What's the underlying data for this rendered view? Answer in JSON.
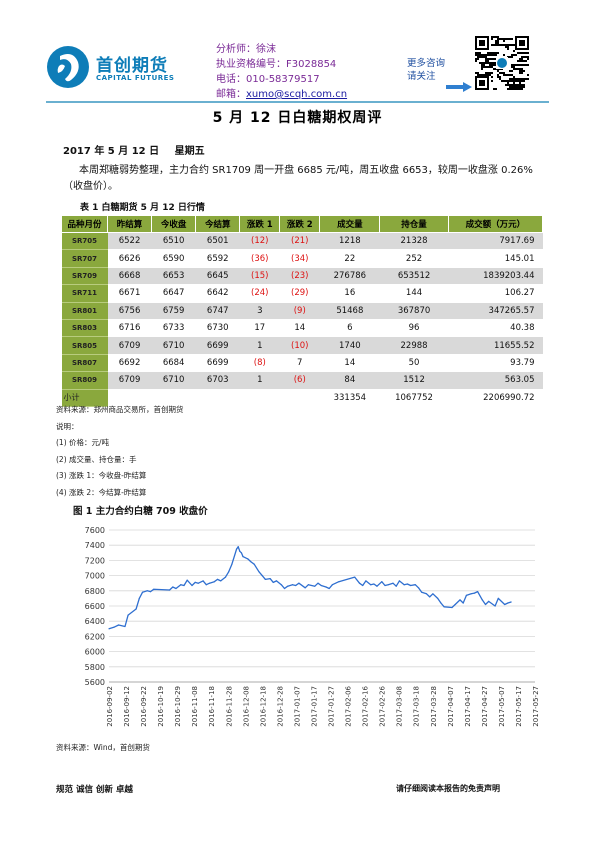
{
  "header": {
    "logo_cn": "首创期货",
    "logo_en": "CAPITAL FUTURES",
    "analyst_label": "分析师：",
    "analyst_name": "徐沫",
    "license_label": "执业资格编号：",
    "license_no": "F3028854",
    "phone_label": "电话：",
    "phone": "010-58379517",
    "email_label": "邮箱：",
    "email": "xumo@scqh.com.cn",
    "follow_line1": "更多咨询",
    "follow_line2": "请关注",
    "accent_color": "#0e7db8"
  },
  "title": "5 月 12 日白糖期权周评",
  "date": {
    "date": "2017 年 5 月 12 日",
    "weekday": "星期五"
  },
  "summary": "本周郑糖弱势整理，主力合约 SR1709 周一开盘 6685 元/吨，周五收盘 6653，较周一收盘涨 0.26%（收盘价）。",
  "table": {
    "caption": "表 1  白糖期货 5 月 12 日行情",
    "headers": [
      "品种月份",
      "昨结算",
      "今收盘",
      "今结算",
      "涨跌 1",
      "涨跌 2",
      "成交量",
      "持仓量",
      "成交额（万元）"
    ],
    "rows": [
      {
        "code": "SR705",
        "prev_settle": "6522",
        "close": "6510",
        "settle": "6501",
        "chg1": "(12)",
        "chg2": "(21)",
        "volume": "1218",
        "oi": "21328",
        "turnover": "7917.69"
      },
      {
        "code": "SR707",
        "prev_settle": "6626",
        "close": "6590",
        "settle": "6592",
        "chg1": "(36)",
        "chg2": "(34)",
        "volume": "22",
        "oi": "252",
        "turnover": "145.01"
      },
      {
        "code": "SR709",
        "prev_settle": "6668",
        "close": "6653",
        "settle": "6645",
        "chg1": "(15)",
        "chg2": "(23)",
        "volume": "276786",
        "oi": "653512",
        "turnover": "1839203.44"
      },
      {
        "code": "SR711",
        "prev_settle": "6671",
        "close": "6647",
        "settle": "6642",
        "chg1": "(24)",
        "chg2": "(29)",
        "volume": "16",
        "oi": "144",
        "turnover": "106.27"
      },
      {
        "code": "SR801",
        "prev_settle": "6756",
        "close": "6759",
        "settle": "6747",
        "chg1": "3",
        "chg2": "(9)",
        "volume": "51468",
        "oi": "367870",
        "turnover": "347265.57"
      },
      {
        "code": "SR803",
        "prev_settle": "6716",
        "close": "6733",
        "settle": "6730",
        "chg1": "17",
        "chg2": "14",
        "volume": "6",
        "oi": "96",
        "turnover": "40.38"
      },
      {
        "code": "SR805",
        "prev_settle": "6709",
        "close": "6710",
        "settle": "6699",
        "chg1": "1",
        "chg2": "(10)",
        "volume": "1740",
        "oi": "22988",
        "turnover": "11655.52"
      },
      {
        "code": "SR807",
        "prev_settle": "6692",
        "close": "6684",
        "settle": "6699",
        "chg1": "(8)",
        "chg2": "7",
        "volume": "14",
        "oi": "50",
        "turnover": "93.79"
      },
      {
        "code": "SR809",
        "prev_settle": "6709",
        "close": "6710",
        "settle": "6703",
        "chg1": "1",
        "chg2": "(6)",
        "volume": "84",
        "oi": "1512",
        "turnover": "563.05"
      }
    ],
    "total": {
      "label": "小计",
      "volume": "331354",
      "oi": "1067752",
      "turnover": "2206990.72"
    },
    "header_color": "#8aa83d",
    "negative_color": "#d11111"
  },
  "notes": {
    "source": "资料来源：郑州商品交易所，首创期货",
    "heading": "说明：",
    "items": [
      "(1)  价格：元/吨",
      "(2)  成交量、持仓量：手",
      "(3)  涨跌 1：今收盘-昨结算",
      "(4)  涨跌 2：今结算-昨结算"
    ]
  },
  "chart_data": {
    "type": "line",
    "title": "图 1  主力合约白糖 709 收盘价",
    "ylim": [
      5600,
      7600
    ],
    "yticks": [
      "7600",
      "7400",
      "7200",
      "7000",
      "6800",
      "6600",
      "6400",
      "6200",
      "6000",
      "5800",
      "5600"
    ],
    "grid": true,
    "line_color": "#2f6fd0",
    "xticks": [
      "2016-09-02",
      "2016-09-12",
      "2016-09-22",
      "2016-10-02",
      "2016-10-12",
      "2016-10-22",
      "2016-11-01",
      "2016-11-11",
      "2016-11-21",
      "2016-12-01",
      "2016-12-11",
      "2016-12-21",
      "2016-12-31",
      "2017-01-10",
      "2017-01-20",
      "2017-01-30",
      "2017-02-09",
      "2017-02-19",
      "2017-03-01",
      "2017-03-11",
      "2017-03-21",
      "2017-03-31",
      "2017-04-10",
      "2017-04-20",
      "2017-04-30",
      "2017-05-10"
    ],
    "xticks_shown": [
      "2016-09-02",
      "2016-09-12",
      "2016-09-22",
      "2016-10-19",
      "2016-10-29",
      "2016-11-08",
      "2016-11-18",
      "2016-11-28",
      "2016-12-08",
      "2016-12-18",
      "2016-12-28",
      "2017-01-07",
      "2017-01-17",
      "2017-01-27",
      "2017-02-06",
      "2017-02-16",
      "2017-02-26",
      "2017-03-08",
      "2017-03-18",
      "2017-03-28",
      "2017-04-07",
      "2017-04-17",
      "2017-04-27",
      "2017-05-07",
      "2017-05-17",
      "2017-05-27"
    ],
    "x": [
      "2016-09-02",
      "2016-09-05",
      "2016-09-08",
      "2016-09-12",
      "2016-09-14",
      "2016-09-19",
      "2016-09-21",
      "2016-09-23",
      "2016-09-26",
      "2016-09-28",
      "2016-09-30",
      "2016-10-10",
      "2016-10-12",
      "2016-10-14",
      "2016-10-17",
      "2016-10-19",
      "2016-10-21",
      "2016-10-24",
      "2016-10-26",
      "2016-10-28",
      "2016-10-31",
      "2016-11-02",
      "2016-11-04",
      "2016-11-07",
      "2016-11-09",
      "2016-11-11",
      "2016-11-14",
      "2016-11-16",
      "2016-11-18",
      "2016-11-21",
      "2016-11-22",
      "2016-11-23",
      "2016-11-24",
      "2016-11-25",
      "2016-11-28",
      "2016-11-30",
      "2016-12-02",
      "2016-12-05",
      "2016-12-07",
      "2016-12-09",
      "2016-12-12",
      "2016-12-14",
      "2016-12-16",
      "2016-12-19",
      "2016-12-21",
      "2016-12-23",
      "2016-12-26",
      "2016-12-28",
      "2016-12-30",
      "2017-01-03",
      "2017-01-05",
      "2017-01-09",
      "2017-01-11",
      "2017-01-13",
      "2017-01-16",
      "2017-01-18",
      "2017-01-20",
      "2017-01-24",
      "2017-02-03",
      "2017-02-06",
      "2017-02-08",
      "2017-02-10",
      "2017-02-13",
      "2017-02-15",
      "2017-02-17",
      "2017-02-20",
      "2017-02-22",
      "2017-02-24",
      "2017-02-27",
      "2017-03-01",
      "2017-03-03",
      "2017-03-06",
      "2017-03-08",
      "2017-03-10",
      "2017-03-13",
      "2017-03-15",
      "2017-03-17",
      "2017-03-20",
      "2017-03-22",
      "2017-03-24",
      "2017-03-27",
      "2017-03-29",
      "2017-03-31",
      "2017-04-05",
      "2017-04-07",
      "2017-04-10",
      "2017-04-12",
      "2017-04-14",
      "2017-04-17",
      "2017-04-19",
      "2017-04-21",
      "2017-04-24",
      "2017-04-26",
      "2017-04-28",
      "2017-05-02",
      "2017-05-04",
      "2017-05-08",
      "2017-05-10",
      "2017-05-12"
    ],
    "y": [
      6300,
      6320,
      6350,
      6330,
      6480,
      6560,
      6700,
      6780,
      6800,
      6790,
      6820,
      6810,
      6850,
      6830,
      6880,
      6870,
      6940,
      6870,
      6910,
      6900,
      6930,
      6880,
      6900,
      6920,
      6950,
      6930,
      6980,
      7050,
      7150,
      7350,
      7380,
      7320,
      7300,
      7250,
      7220,
      7180,
      7150,
      7050,
      7000,
      6950,
      6960,
      6910,
      6930,
      6880,
      6830,
      6860,
      6880,
      6870,
      6900,
      6840,
      6880,
      6860,
      6900,
      6870,
      6850,
      6830,
      6880,
      6920,
      6980,
      6900,
      6870,
      6930,
      6880,
      6890,
      6860,
      6920,
      6870,
      6880,
      6900,
      6860,
      6930,
      6880,
      6890,
      6870,
      6880,
      6840,
      6780,
      6760,
      6720,
      6760,
      6700,
      6640,
      6590,
      6580,
      6620,
      6680,
      6640,
      6740,
      6760,
      6770,
      6790,
      6680,
      6620,
      6660,
      6600,
      6700,
      6620,
      6640,
      6653
    ]
  },
  "chart_source": "资料来源：Wind，首创期货",
  "footer": {
    "left": "规范 诚信 创新 卓越",
    "right": "请仔细阅读本报告的免责声明"
  }
}
